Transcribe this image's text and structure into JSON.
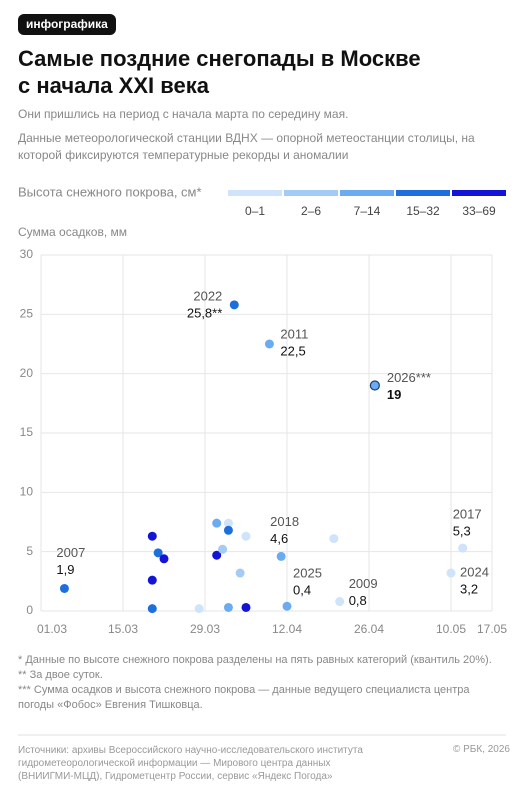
{
  "badge": "инфографика",
  "chart_data": {
    "type": "scatter",
    "title": [
      "Самые поздние снегопады в Москве",
      "с начала XXI века"
    ],
    "subtitle": "Они пришлись на период с начала марта по середину мая.",
    "description": "Данные метеорологической станции ВДНХ — опорной метеостанции столицы, на которой фиксируются температурные рекорды и аномалии",
    "legend": {
      "title": "Высота снежного покрова, см*",
      "items": [
        {
          "label": "0–1",
          "color": "#cfe3fa"
        },
        {
          "label": "2–6",
          "color": "#a3cbf5"
        },
        {
          "label": "7–14",
          "color": "#6aabf2"
        },
        {
          "label": "15–32",
          "color": "#1c6fdc"
        },
        {
          "label": "33–69",
          "color": "#1414d8"
        }
      ]
    },
    "y_label": "Сумма осадков, мм",
    "ylim": [
      0,
      30
    ],
    "yticks": [
      0,
      5,
      10,
      15,
      20,
      25,
      30
    ],
    "xlim": [
      "01.03",
      "17.05"
    ],
    "xticks": [
      "01.03",
      "15.03",
      "29.03",
      "12.04",
      "26.04",
      "10.05",
      "17.05"
    ],
    "grid": true,
    "points": {
      "x": [
        "05.03",
        "03.04",
        "09.04",
        "27.04",
        "11.04",
        "12.04",
        "21.04",
        "12.05",
        "10.05",
        "20.03",
        "21.03",
        "22.03",
        "20.03",
        "20.03",
        "28.03",
        "31.03",
        "31.03",
        "02.04",
        "01.04",
        "02.04",
        "02.04",
        "04.04",
        "05.04",
        "05.04",
        "20.04"
      ],
      "values": [
        1.9,
        25.8,
        22.5,
        19,
        4.6,
        0.4,
        0.8,
        5.3,
        3.2,
        6.3,
        4.9,
        4.4,
        2.6,
        0.2,
        0.2,
        4.7,
        7.4,
        7.4,
        5.2,
        6.8,
        0.3,
        3.2,
        6.3,
        0.3,
        6.1
      ],
      "colors": [
        "#1c6fdc",
        "#1c6fdc",
        "#6aabf2",
        "#6aabf2",
        "#6aabf2",
        "#6aabf2",
        "#cfe3fa",
        "#cfe3fa",
        "#cfe3fa",
        "#1414d8",
        "#1c6fdc",
        "#1414d8",
        "#1414d8",
        "#1c6fdc",
        "#cfe3fa",
        "#1414d8",
        "#6aabf2",
        "#cfe3fa",
        "#a3cbf5",
        "#1c6fdc",
        "#6aabf2",
        "#a3cbf5",
        "#cfe3fa",
        "#1414d8",
        "#cfe3fa"
      ],
      "labels": [
        "2007",
        "2022",
        "2011",
        "2026***",
        "2018",
        "2025",
        "2009",
        "2017",
        "2024",
        null,
        null,
        null,
        null,
        null,
        null,
        null,
        null,
        null,
        null,
        null,
        null,
        null,
        null,
        null,
        null
      ],
      "value_labels": [
        "1,9",
        "25,8**",
        "22,5",
        "19",
        "4,6",
        "0,4",
        "0,8",
        "5,3",
        "3,2",
        null,
        null,
        null,
        null,
        null,
        null,
        null,
        null,
        null,
        null,
        null,
        null,
        null,
        null,
        null,
        null
      ]
    }
  },
  "footnotes": [
    "* Данные по высоте снежного покрова разделены на пять равных категорий (квантиль 20%).",
    "** За двое суток.",
    "*** Сумма осадков и высота снежного покрова — данные ведущего специалиста центра погоды «Фобос» Евгения Тишковца."
  ],
  "sources": [
    "Источники: архивы Всероссийского научно-исследовательского института",
    "гидрометеорологической информации — Мирового центра данных",
    "(ВНИИГМИ-МЦД), Гидрометцентр России, сервис «Яндекс Погода»"
  ],
  "copyright": "© РБК, 2026"
}
